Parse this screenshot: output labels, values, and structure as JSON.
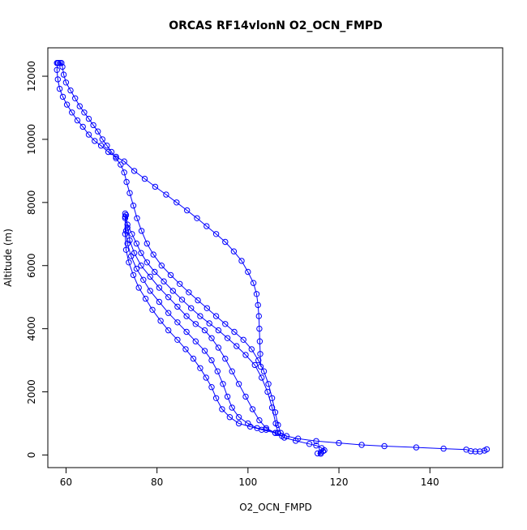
{
  "chart_data": {
    "type": "scatter",
    "title": "ORCAS RF14vlonN O2_OCN_FMPD",
    "xlabel": "O2_OCN_FMPD",
    "ylabel": "Altitude (m)",
    "xlim": [
      56,
      156
    ],
    "ylim": [
      -400,
      12900
    ],
    "xticks": [
      60,
      80,
      100,
      120,
      140
    ],
    "yticks": [
      0,
      2000,
      4000,
      6000,
      8000,
      10000,
      12000
    ],
    "grid": false,
    "legend": "none",
    "marker": "open-circle",
    "connect_line": true,
    "color": "#0000ff",
    "series": [
      {
        "points": [
          [
            58.0,
            12420
          ],
          [
            58.3,
            12420
          ],
          [
            58.7,
            12420
          ],
          [
            59.0,
            12420
          ],
          [
            59.2,
            12300
          ],
          [
            59.5,
            12050
          ],
          [
            60.0,
            11800
          ],
          [
            61.0,
            11550
          ],
          [
            62.0,
            11300
          ],
          [
            63.0,
            11050
          ],
          [
            64.0,
            10850
          ],
          [
            65.0,
            10650
          ],
          [
            66.0,
            10450
          ],
          [
            67.0,
            10250
          ],
          [
            68.0,
            10000
          ],
          [
            69.0,
            9800
          ],
          [
            70.0,
            9600
          ],
          [
            71.0,
            9400
          ],
          [
            72.0,
            9200
          ],
          [
            72.8,
            8950
          ],
          [
            73.3,
            8650
          ],
          [
            74.0,
            8300
          ],
          [
            74.8,
            7900
          ],
          [
            75.6,
            7500
          ],
          [
            76.6,
            7100
          ],
          [
            77.8,
            6700
          ],
          [
            79.2,
            6350
          ],
          [
            81.0,
            6000
          ],
          [
            83.0,
            5700
          ],
          [
            85.0,
            5420
          ],
          [
            87.0,
            5150
          ],
          [
            89.0,
            4900
          ],
          [
            91.0,
            4650
          ],
          [
            93.0,
            4400
          ],
          [
            95.0,
            4150
          ],
          [
            97.0,
            3900
          ],
          [
            99.0,
            3650
          ],
          [
            100.8,
            3350
          ],
          [
            102.3,
            3000
          ],
          [
            103.5,
            2650
          ],
          [
            104.5,
            2250
          ],
          [
            105.3,
            1800
          ],
          [
            106.0,
            1350
          ],
          [
            106.6,
            950
          ],
          [
            107.2,
            700
          ],
          [
            108.5,
            600
          ],
          [
            111.0,
            520
          ],
          [
            115.0,
            440
          ],
          [
            120.0,
            380
          ],
          [
            125.0,
            320
          ],
          [
            130.0,
            280
          ],
          [
            137.0,
            240
          ],
          [
            143.0,
            200
          ],
          [
            148.0,
            170
          ],
          [
            149.0,
            120
          ],
          [
            150.0,
            110
          ],
          [
            151.0,
            110
          ],
          [
            152.0,
            140
          ],
          [
            152.5,
            180
          ]
        ]
      },
      {
        "points": [
          [
            58.2,
            12420
          ],
          [
            58.0,
            12200
          ],
          [
            58.2,
            11900
          ],
          [
            58.6,
            11600
          ],
          [
            59.3,
            11350
          ],
          [
            60.2,
            11100
          ],
          [
            61.3,
            10850
          ],
          [
            62.5,
            10600
          ],
          [
            63.7,
            10400
          ],
          [
            65.0,
            10150
          ],
          [
            66.3,
            9950
          ],
          [
            67.7,
            9800
          ],
          [
            69.3,
            9600
          ],
          [
            71.0,
            9450
          ],
          [
            72.8,
            9300
          ],
          [
            75.0,
            9000
          ],
          [
            77.3,
            8750
          ],
          [
            79.6,
            8500
          ],
          [
            82.0,
            8250
          ],
          [
            84.3,
            8000
          ],
          [
            86.6,
            7750
          ],
          [
            88.8,
            7500
          ],
          [
            90.9,
            7250
          ],
          [
            93.0,
            7000
          ],
          [
            95.0,
            6750
          ],
          [
            96.9,
            6450
          ],
          [
            98.6,
            6150
          ],
          [
            100.0,
            5800
          ],
          [
            101.2,
            5450
          ],
          [
            101.9,
            5100
          ],
          [
            102.2,
            4750
          ],
          [
            102.4,
            4400
          ],
          [
            102.5,
            4000
          ],
          [
            102.6,
            3600
          ],
          [
            102.7,
            3200
          ],
          [
            102.8,
            2800
          ]
        ]
      },
      {
        "points": [
          [
            73.0,
            7650
          ],
          [
            73.5,
            7300
          ],
          [
            74.5,
            7000
          ],
          [
            75.5,
            6700
          ],
          [
            76.5,
            6400
          ],
          [
            77.8,
            6100
          ],
          [
            79.5,
            5800
          ],
          [
            81.5,
            5500
          ],
          [
            83.5,
            5200
          ],
          [
            85.5,
            4920
          ],
          [
            87.5,
            4650
          ],
          [
            89.5,
            4400
          ],
          [
            91.5,
            4170
          ],
          [
            93.5,
            3950
          ],
          [
            95.5,
            3700
          ],
          [
            97.5,
            3450
          ],
          [
            99.5,
            3170
          ],
          [
            101.5,
            2850
          ],
          [
            103.0,
            2450
          ],
          [
            104.3,
            2000
          ],
          [
            105.3,
            1500
          ],
          [
            106.1,
            1000
          ],
          [
            106.6,
            700
          ]
        ]
      },
      {
        "points": [
          [
            73.2,
            7600
          ],
          [
            73.5,
            7200
          ],
          [
            74.0,
            6800
          ],
          [
            75.0,
            6400
          ],
          [
            76.5,
            6000
          ],
          [
            78.5,
            5650
          ],
          [
            80.5,
            5300
          ],
          [
            82.5,
            5000
          ],
          [
            84.5,
            4700
          ],
          [
            86.5,
            4400
          ],
          [
            88.5,
            4150
          ],
          [
            90.5,
            3950
          ],
          [
            92.0,
            3700
          ],
          [
            93.5,
            3400
          ],
          [
            95.0,
            3050
          ],
          [
            96.5,
            2650
          ],
          [
            98.0,
            2250
          ],
          [
            99.5,
            1850
          ],
          [
            101.0,
            1450
          ],
          [
            102.5,
            1100
          ],
          [
            104.0,
            850
          ],
          [
            106.0,
            700
          ]
        ]
      },
      {
        "points": [
          [
            73.0,
            7550
          ],
          [
            73.2,
            7100
          ],
          [
            73.5,
            6700
          ],
          [
            74.3,
            6300
          ],
          [
            75.5,
            5900
          ],
          [
            77.0,
            5550
          ],
          [
            78.5,
            5200
          ],
          [
            80.5,
            4850
          ],
          [
            82.5,
            4500
          ],
          [
            84.5,
            4200
          ],
          [
            86.5,
            3900
          ],
          [
            88.5,
            3600
          ],
          [
            90.5,
            3300
          ],
          [
            92.0,
            3000
          ],
          [
            93.3,
            2650
          ],
          [
            94.5,
            2250
          ],
          [
            95.5,
            1850
          ],
          [
            96.5,
            1500
          ],
          [
            98.0,
            1200
          ],
          [
            100.0,
            1000
          ],
          [
            102.0,
            850
          ],
          [
            104.0,
            800
          ],
          [
            106.5,
            700
          ],
          [
            107.5,
            600
          ]
        ]
      },
      {
        "points": [
          [
            73.0,
            7500
          ],
          [
            73.0,
            7000
          ],
          [
            73.2,
            6500
          ],
          [
            73.8,
            6100
          ],
          [
            74.8,
            5700
          ],
          [
            76.0,
            5300
          ],
          [
            77.5,
            4950
          ],
          [
            79.0,
            4600
          ],
          [
            80.8,
            4250
          ],
          [
            82.5,
            3950
          ],
          [
            84.5,
            3650
          ],
          [
            86.3,
            3350
          ],
          [
            88.0,
            3050
          ],
          [
            89.5,
            2750
          ],
          [
            90.8,
            2450
          ],
          [
            92.0,
            2150
          ],
          [
            93.0,
            1800
          ],
          [
            94.3,
            1450
          ],
          [
            96.0,
            1200
          ],
          [
            98.0,
            1000
          ],
          [
            100.5,
            900
          ],
          [
            103.0,
            800
          ],
          [
            106.0,
            700
          ],
          [
            108.0,
            550
          ],
          [
            110.5,
            450
          ],
          [
            113.5,
            350
          ],
          [
            115.0,
            300
          ],
          [
            116.2,
            220
          ],
          [
            116.8,
            150
          ],
          [
            116.0,
            80
          ],
          [
            115.3,
            50
          ],
          [
            116.0,
            40
          ],
          [
            116.5,
            120
          ]
        ]
      }
    ]
  }
}
